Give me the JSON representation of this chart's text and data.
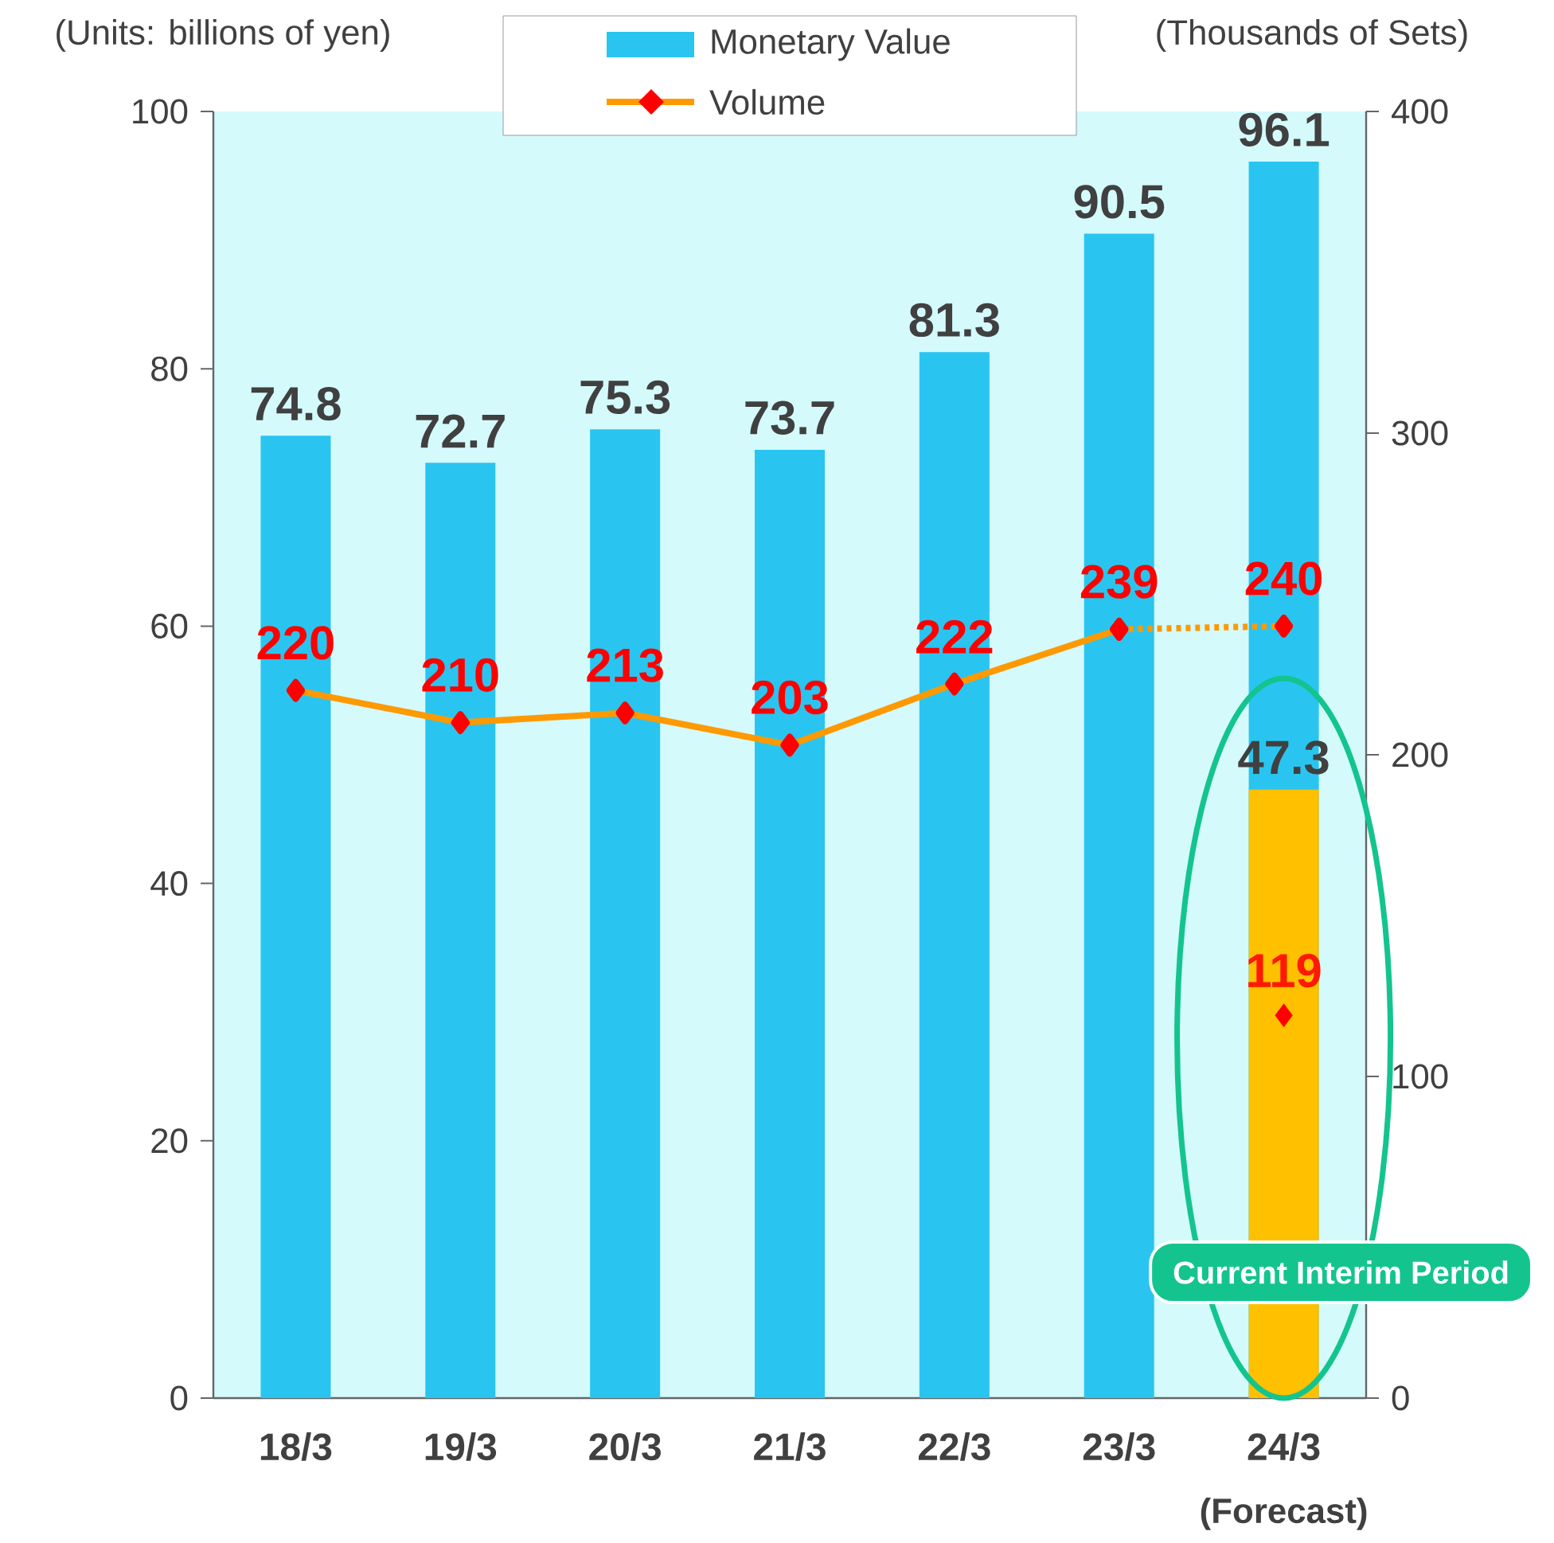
{
  "chart_data": {
    "type": "bar",
    "ylabel": "(Units: billions of yen)",
    "y2label": "(Thousands of Sets)",
    "categories": [
      "18/3",
      "19/3",
      "20/3",
      "21/3",
      "22/3",
      "23/3",
      "24/3"
    ],
    "series": [
      {
        "name": "Monetary Value",
        "axis": "y",
        "color": "#29c5f0",
        "values": [
          74.8,
          72.7,
          75.3,
          73.7,
          81.3,
          90.5,
          96.1
        ],
        "value_labels": [
          "74.8",
          "72.7",
          "75.3",
          "73.7",
          "81.3",
          "90.5",
          "96.1"
        ]
      },
      {
        "axis": "y",
        "color": "#ffc000",
        "values": [
          null,
          null,
          null,
          null,
          null,
          null,
          47.3
        ],
        "value_labels": [
          null,
          null,
          null,
          null,
          null,
          null,
          "47.3"
        ]
      },
      {
        "name": "Volume",
        "type": "line",
        "axis": "y2",
        "color": "#ff9900",
        "marker": "diamond",
        "line_style": "solid",
        "values": [
          220,
          210,
          213,
          203,
          222,
          239,
          null
        ],
        "value_labels": [
          "220",
          "210",
          "213",
          "203",
          "222",
          "239",
          null
        ]
      },
      {
        "type": "line",
        "axis": "y2",
        "color": "#ff9900",
        "marker": "diamond",
        "line_style": "dashed",
        "values": [
          null,
          null,
          null,
          null,
          null,
          239,
          240
        ],
        "value_labels": [
          null,
          null,
          null,
          null,
          null,
          null,
          "240"
        ]
      },
      {
        "type": "scatter",
        "axis": "y2",
        "color": "#ff0000",
        "marker": "diamond",
        "values": [
          null,
          null,
          null,
          null,
          null,
          null,
          119
        ],
        "value_labels": [
          null,
          null,
          null,
          null,
          null,
          null,
          "119"
        ]
      }
    ],
    "ylim": [
      0,
      100
    ],
    "yticks": [
      0,
      20,
      40,
      60,
      80,
      100
    ],
    "y2lim": [
      0,
      400
    ],
    "y2ticks": [
      0,
      100,
      200,
      300,
      400
    ],
    "legend": "top",
    "grid": false,
    "annotations": [
      "(Forecast)",
      "Current Interim Period"
    ]
  }
}
